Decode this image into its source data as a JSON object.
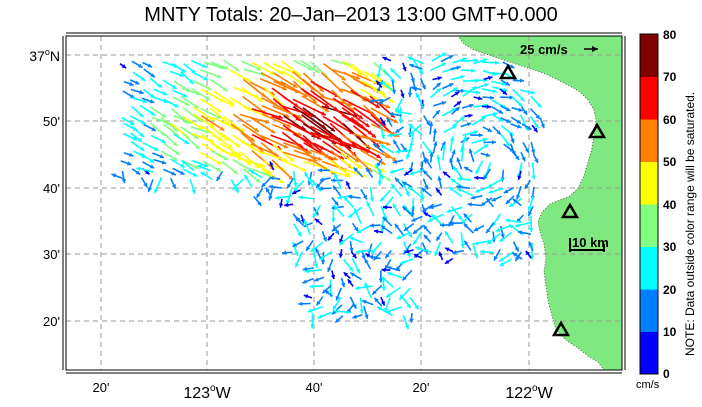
{
  "title": "MNTY Totals: 20–Jan–2013 13:00 GMT+0.000",
  "latitude_labels": [
    {
      "deg": "37",
      "min": "",
      "hemi": "N"
    },
    {
      "deg": "",
      "min": "50'",
      "hemi": ""
    },
    {
      "deg": "",
      "min": "40'",
      "hemi": ""
    },
    {
      "deg": "",
      "min": "30'",
      "hemi": ""
    },
    {
      "deg": "",
      "min": "20'",
      "hemi": ""
    }
  ],
  "longitude_labels": [
    {
      "deg": "",
      "min": "20'",
      "hemi": ""
    },
    {
      "deg": "123",
      "min": "",
      "hemi": "W"
    },
    {
      "deg": "",
      "min": "40'",
      "hemi": ""
    },
    {
      "deg": "",
      "min": "20'",
      "hemi": ""
    },
    {
      "deg": "122",
      "min": "",
      "hemi": "W"
    }
  ],
  "scale_vector_label": "25 cm/s",
  "scale_bar_label": "10 km",
  "colorbar": {
    "ticks": [
      "80",
      "70",
      "60",
      "50",
      "40",
      "30",
      "20",
      "10",
      "0"
    ],
    "unit": "cm/s",
    "note": "NOTE: Data outside color range will be saturated.",
    "colors": [
      "#0000ff",
      "#0080ff",
      "#00ffff",
      "#80ff80",
      "#ffff00",
      "#ff8000",
      "#ff0000",
      "#800000"
    ],
    "range": [
      0,
      80
    ]
  },
  "colors": {
    "land": "#80e880",
    "coast_dots": "#3a6a3a",
    "grid": "#9a9a9a",
    "station_marker": "#000000"
  },
  "stations_count_shown": 4
}
